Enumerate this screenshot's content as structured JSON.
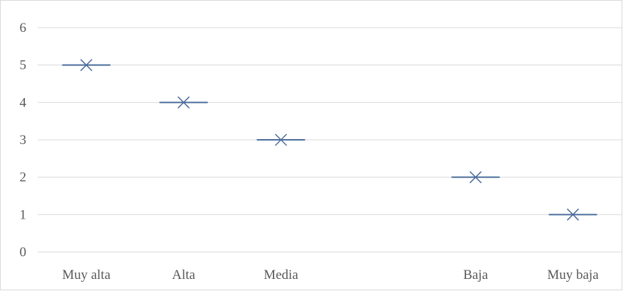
{
  "chart_data": {
    "type": "scatter",
    "title": "",
    "xlabel": "",
    "ylabel": "",
    "categories": [
      "Muy alta",
      "Alta",
      "Media",
      "",
      "Baja",
      "Muy baja"
    ],
    "series": [
      {
        "marker": "x-with-dash",
        "color": "#4a6c9b",
        "values": [
          5,
          4,
          3,
          null,
          2,
          1
        ]
      }
    ],
    "ylim": [
      0,
      6
    ],
    "yticks": [
      0,
      1,
      2,
      3,
      4,
      5,
      6
    ],
    "ytick_labels": [
      "0",
      "1",
      "2",
      "3",
      "4",
      "5",
      "6"
    ],
    "grid": true,
    "gridline_color": "#d9d9d9",
    "legend": "none"
  }
}
